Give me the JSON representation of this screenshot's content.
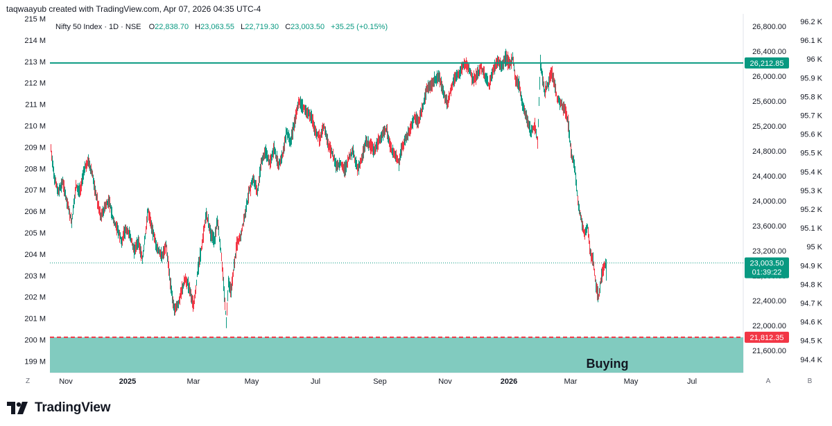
{
  "header": {
    "credit": "taqwaayub created with TradingView.com, Apr 07, 2026 04:35 UTC-4"
  },
  "legend": {
    "symbol": "Nifty 50 Index · 1D · NSE",
    "o_label": "O",
    "o": "22,838.70",
    "h_label": "H",
    "h": "23,063.55",
    "l_label": "L",
    "l": "22,719.30",
    "c_label": "C",
    "c": "23,003.50",
    "change": "+35.25 (+0.15%)"
  },
  "colors": {
    "up": "#089981",
    "down": "#f23645",
    "resistance": "#089981",
    "support": "#f23645",
    "zone": "#81cbbf"
  },
  "chart_data": {
    "type": "candlestick",
    "title": "Nifty 50 Index · 1D · NSE",
    "price_axis": {
      "ticks": [
        "26,800.00",
        "26,400.00",
        "26,000.00",
        "25,600.00",
        "25,200.00",
        "24,800.00",
        "24,400.00",
        "24,000.00",
        "23,600.00",
        "23,200.00",
        "22,800.00",
        "22,400.00",
        "22,000.00",
        "21,600.00"
      ],
      "range": [
        21300,
        26950
      ]
    },
    "left_axis": {
      "ticks": [
        "215 M",
        "214 M",
        "213 M",
        "212 M",
        "211 M",
        "210 M",
        "209 M",
        "208 M",
        "207 M",
        "206 M",
        "205 M",
        "204 M",
        "203 M",
        "202 M",
        "201 M",
        "200 M",
        "199 M"
      ]
    },
    "right_axis": {
      "ticks": [
        "96.2 K",
        "96.1 K",
        "96 K",
        "95.9 K",
        "95.8 K",
        "95.7 K",
        "95.6 K",
        "95.5 K",
        "95.4 K",
        "95.3 K",
        "95.2 K",
        "95.1 K",
        "95 K",
        "94.9 K",
        "94.8 K",
        "94.7 K",
        "94.6 K",
        "94.5 K",
        "94.4 K"
      ]
    },
    "time_axis": {
      "labels": [
        {
          "text": "Nov",
          "bold": false
        },
        {
          "text": "2025",
          "bold": true
        },
        {
          "text": "Mar",
          "bold": false
        },
        {
          "text": "May",
          "bold": false
        },
        {
          "text": "Jul",
          "bold": false
        },
        {
          "text": "Sep",
          "bold": false
        },
        {
          "text": "Nov",
          "bold": false
        },
        {
          "text": "2026",
          "bold": true
        },
        {
          "text": "Mar",
          "bold": false
        },
        {
          "text": "May",
          "bold": false
        },
        {
          "text": "Jul",
          "bold": false
        }
      ]
    },
    "path": [
      [
        0,
        24850
      ],
      [
        5,
        24350
      ],
      [
        11,
        24150
      ],
      [
        17,
        24300
      ],
      [
        24,
        23950
      ],
      [
        30,
        23650
      ],
      [
        36,
        24250
      ],
      [
        42,
        24150
      ],
      [
        48,
        24500
      ],
      [
        54,
        24650
      ],
      [
        60,
        24400
      ],
      [
        66,
        24050
      ],
      [
        72,
        23750
      ],
      [
        78,
        23900
      ],
      [
        84,
        24000
      ],
      [
        90,
        23700
      ],
      [
        96,
        23550
      ],
      [
        102,
        23350
      ],
      [
        108,
        23550
      ],
      [
        114,
        23450
      ],
      [
        120,
        23200
      ],
      [
        126,
        23350
      ],
      [
        132,
        23050
      ],
      [
        140,
        23850
      ],
      [
        147,
        23500
      ],
      [
        153,
        23250
      ],
      [
        160,
        23100
      ],
      [
        166,
        23300
      ],
      [
        172,
        22700
      ],
      [
        178,
        22250
      ],
      [
        184,
        22350
      ],
      [
        188,
        22550
      ],
      [
        194,
        22750
      ],
      [
        200,
        22600
      ],
      [
        206,
        22300
      ],
      [
        212,
        22900
      ],
      [
        218,
        23300
      ],
      [
        224,
        23800
      ],
      [
        230,
        23500
      ],
      [
        236,
        23350
      ],
      [
        240,
        23700
      ],
      [
        246,
        23100
      ],
      [
        250,
        22500
      ],
      [
        253,
        22050
      ],
      [
        256,
        22700
      ],
      [
        260,
        22550
      ],
      [
        264,
        22950
      ],
      [
        268,
        23300
      ],
      [
        274,
        23450
      ],
      [
        280,
        23800
      ],
      [
        286,
        24150
      ],
      [
        292,
        24350
      ],
      [
        298,
        24150
      ],
      [
        304,
        24650
      ],
      [
        310,
        24800
      ],
      [
        316,
        24600
      ],
      [
        322,
        24850
      ],
      [
        328,
        24550
      ],
      [
        334,
        24750
      ],
      [
        340,
        25100
      ],
      [
        346,
        24950
      ],
      [
        352,
        25300
      ],
      [
        358,
        25600
      ],
      [
        364,
        25500
      ],
      [
        370,
        25400
      ],
      [
        376,
        25350
      ],
      [
        382,
        25100
      ],
      [
        388,
        25000
      ],
      [
        394,
        25200
      ],
      [
        400,
        24900
      ],
      [
        406,
        24750
      ],
      [
        412,
        24550
      ],
      [
        418,
        24600
      ],
      [
        424,
        24500
      ],
      [
        430,
        24700
      ],
      [
        436,
        24800
      ],
      [
        442,
        24500
      ],
      [
        448,
        24650
      ],
      [
        454,
        24950
      ],
      [
        460,
        24900
      ],
      [
        466,
        24800
      ],
      [
        472,
        24950
      ],
      [
        478,
        25050
      ],
      [
        484,
        25150
      ],
      [
        490,
        24850
      ],
      [
        496,
        24750
      ],
      [
        502,
        24600
      ],
      [
        506,
        24850
      ],
      [
        512,
        25000
      ],
      [
        518,
        25150
      ],
      [
        524,
        25350
      ],
      [
        530,
        25250
      ],
      [
        536,
        25500
      ],
      [
        542,
        25800
      ],
      [
        548,
        25850
      ],
      [
        554,
        25950
      ],
      [
        560,
        26000
      ],
      [
        566,
        25750
      ],
      [
        572,
        25550
      ],
      [
        578,
        25850
      ],
      [
        584,
        26000
      ],
      [
        590,
        26050
      ],
      [
        596,
        26200
      ],
      [
        602,
        26150
      ],
      [
        608,
        25950
      ],
      [
        614,
        26000
      ],
      [
        620,
        26150
      ],
      [
        626,
        26000
      ],
      [
        632,
        25850
      ],
      [
        638,
        26100
      ],
      [
        644,
        26250
      ],
      [
        650,
        26150
      ],
      [
        656,
        26300
      ],
      [
        662,
        26200
      ],
      [
        666,
        26300
      ],
      [
        670,
        25950
      ],
      [
        676,
        25850
      ],
      [
        680,
        25550
      ],
      [
        686,
        25350
      ],
      [
        692,
        25100
      ],
      [
        698,
        25200
      ],
      [
        702,
        24950
      ],
      [
        706,
        26200
      ],
      [
        712,
        25750
      ],
      [
        718,
        25900
      ],
      [
        722,
        26050
      ],
      [
        726,
        25900
      ],
      [
        730,
        25650
      ],
      [
        736,
        25550
      ],
      [
        742,
        25450
      ],
      [
        746,
        25250
      ],
      [
        750,
        24800
      ],
      [
        756,
        24500
      ],
      [
        760,
        24000
      ],
      [
        766,
        23650
      ],
      [
        770,
        23450
      ],
      [
        774,
        23600
      ],
      [
        778,
        23150
      ],
      [
        782,
        23050
      ],
      [
        786,
        22650
      ],
      [
        790,
        22450
      ],
      [
        794,
        22800
      ],
      [
        798,
        22950
      ],
      [
        801,
        23003
      ]
    ],
    "resistance_level": {
      "value": "26,212.85",
      "price": 26212.85
    },
    "support_level": {
      "value": "21,812.35",
      "price": 21812.35
    },
    "last_price": {
      "value": "23,003.50",
      "countdown": "01:39:22",
      "price": 23003.5
    },
    "zone": {
      "label": "Buying",
      "from": 21812.35,
      "to": 21300
    },
    "annotation": "Buying"
  },
  "footer": {
    "logo_text": "TradingView"
  },
  "controls": {
    "z_label": "Z",
    "a_label": "A",
    "b_label": "B"
  }
}
